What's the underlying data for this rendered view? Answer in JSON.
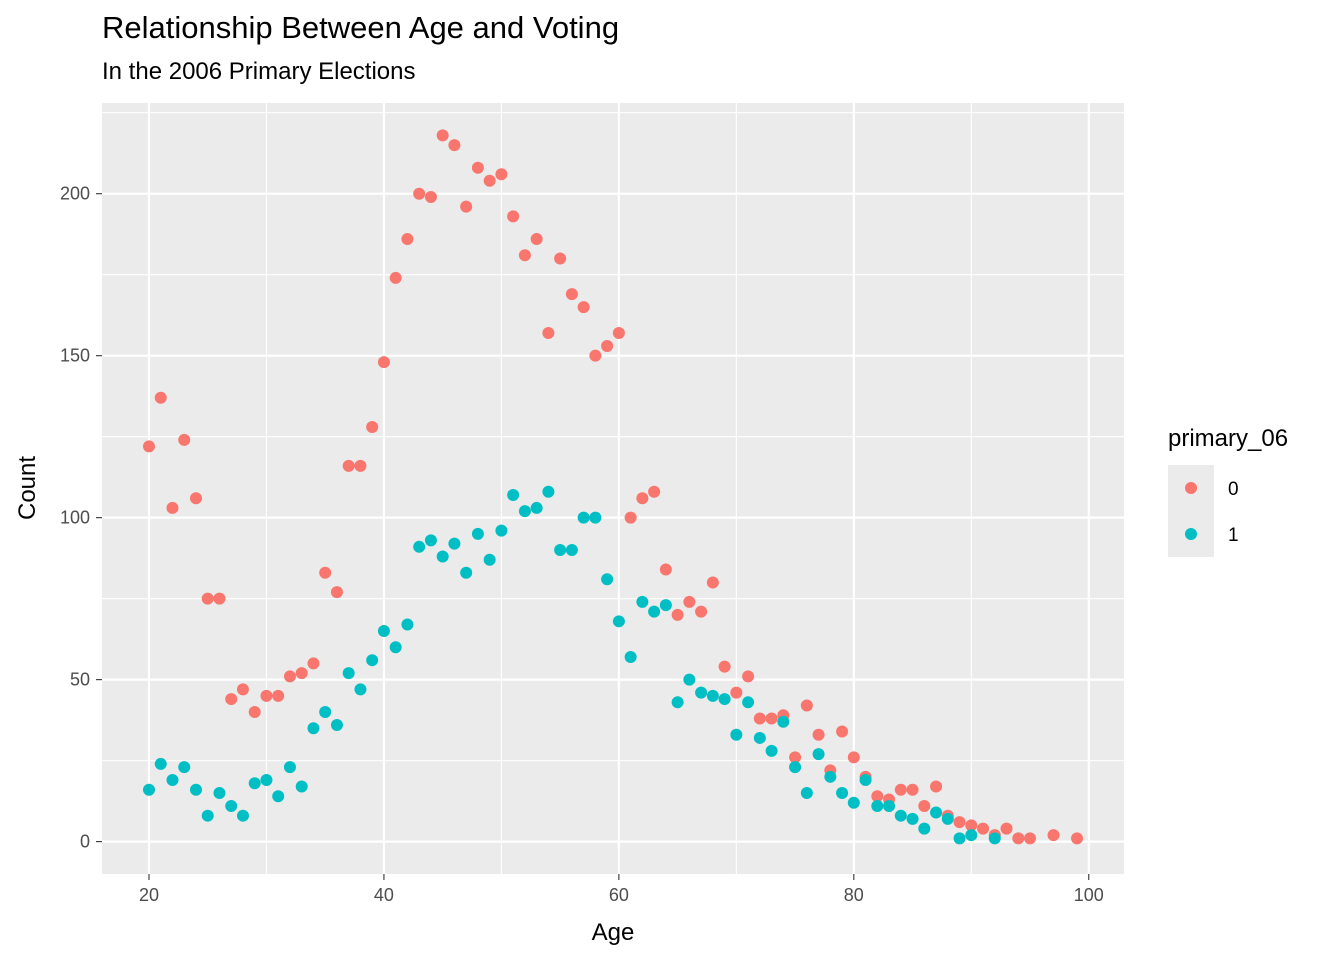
{
  "chart_data": {
    "type": "scatter",
    "title": "Relationship Between Age and Voting",
    "subtitle": "In the 2006 Primary Elections",
    "xlabel": "Age",
    "ylabel": "Count",
    "xlim": [
      16,
      103
    ],
    "ylim": [
      -10,
      228
    ],
    "x_ticks": [
      20,
      40,
      60,
      80,
      100
    ],
    "y_ticks": [
      0,
      50,
      100,
      150,
      200
    ],
    "grid": true,
    "legend": {
      "title": "primary_06",
      "position": "right"
    },
    "series": [
      {
        "name": "0",
        "color": "#F8766D",
        "x": [
          20,
          21,
          22,
          23,
          24,
          25,
          26,
          27,
          28,
          29,
          30,
          31,
          32,
          33,
          34,
          35,
          36,
          37,
          38,
          39,
          40,
          41,
          42,
          43,
          44,
          45,
          46,
          47,
          48,
          49,
          50,
          51,
          52,
          53,
          54,
          55,
          56,
          57,
          58,
          59,
          60,
          61,
          62,
          63,
          64,
          65,
          66,
          67,
          68,
          69,
          70,
          71,
          72,
          73,
          74,
          75,
          76,
          77,
          78,
          79,
          80,
          81,
          82,
          83,
          84,
          85,
          86,
          87,
          88,
          89,
          90,
          91,
          92,
          93,
          94,
          95,
          97,
          99
        ],
        "y": [
          122,
          137,
          103,
          124,
          106,
          75,
          75,
          44,
          47,
          40,
          45,
          45,
          51,
          52,
          55,
          83,
          77,
          116,
          116,
          128,
          148,
          174,
          186,
          200,
          199,
          218,
          215,
          196,
          208,
          204,
          206,
          193,
          181,
          186,
          157,
          180,
          169,
          165,
          150,
          153,
          157,
          100,
          106,
          108,
          84,
          70,
          74,
          71,
          80,
          54,
          46,
          51,
          38,
          38,
          39,
          26,
          42,
          33,
          22,
          34,
          26,
          20,
          14,
          13,
          16,
          16,
          11,
          17,
          8,
          6,
          5,
          4,
          2,
          4,
          1,
          1,
          2,
          1
        ]
      },
      {
        "name": "1",
        "color": "#00BFC4",
        "x": [
          20,
          21,
          22,
          23,
          24,
          25,
          26,
          27,
          28,
          29,
          30,
          31,
          32,
          33,
          34,
          35,
          36,
          37,
          38,
          39,
          40,
          41,
          42,
          43,
          44,
          45,
          46,
          47,
          48,
          49,
          50,
          51,
          52,
          53,
          54,
          55,
          56,
          57,
          58,
          59,
          60,
          61,
          62,
          63,
          64,
          65,
          66,
          67,
          68,
          69,
          70,
          71,
          72,
          73,
          74,
          75,
          76,
          77,
          78,
          79,
          80,
          81,
          82,
          83,
          84,
          85,
          86,
          87,
          88,
          89,
          90,
          92
        ],
        "y": [
          16,
          24,
          19,
          23,
          16,
          8,
          15,
          11,
          8,
          18,
          19,
          14,
          23,
          17,
          35,
          40,
          36,
          52,
          47,
          56,
          65,
          60,
          67,
          91,
          93,
          88,
          92,
          83,
          95,
          87,
          96,
          107,
          102,
          103,
          108,
          90,
          90,
          100,
          100,
          81,
          68,
          57,
          74,
          71,
          73,
          43,
          50,
          46,
          45,
          44,
          33,
          43,
          32,
          28,
          37,
          23,
          15,
          27,
          20,
          15,
          12,
          19,
          11,
          11,
          8,
          7,
          4,
          9,
          7,
          1,
          2,
          1
        ]
      }
    ]
  }
}
